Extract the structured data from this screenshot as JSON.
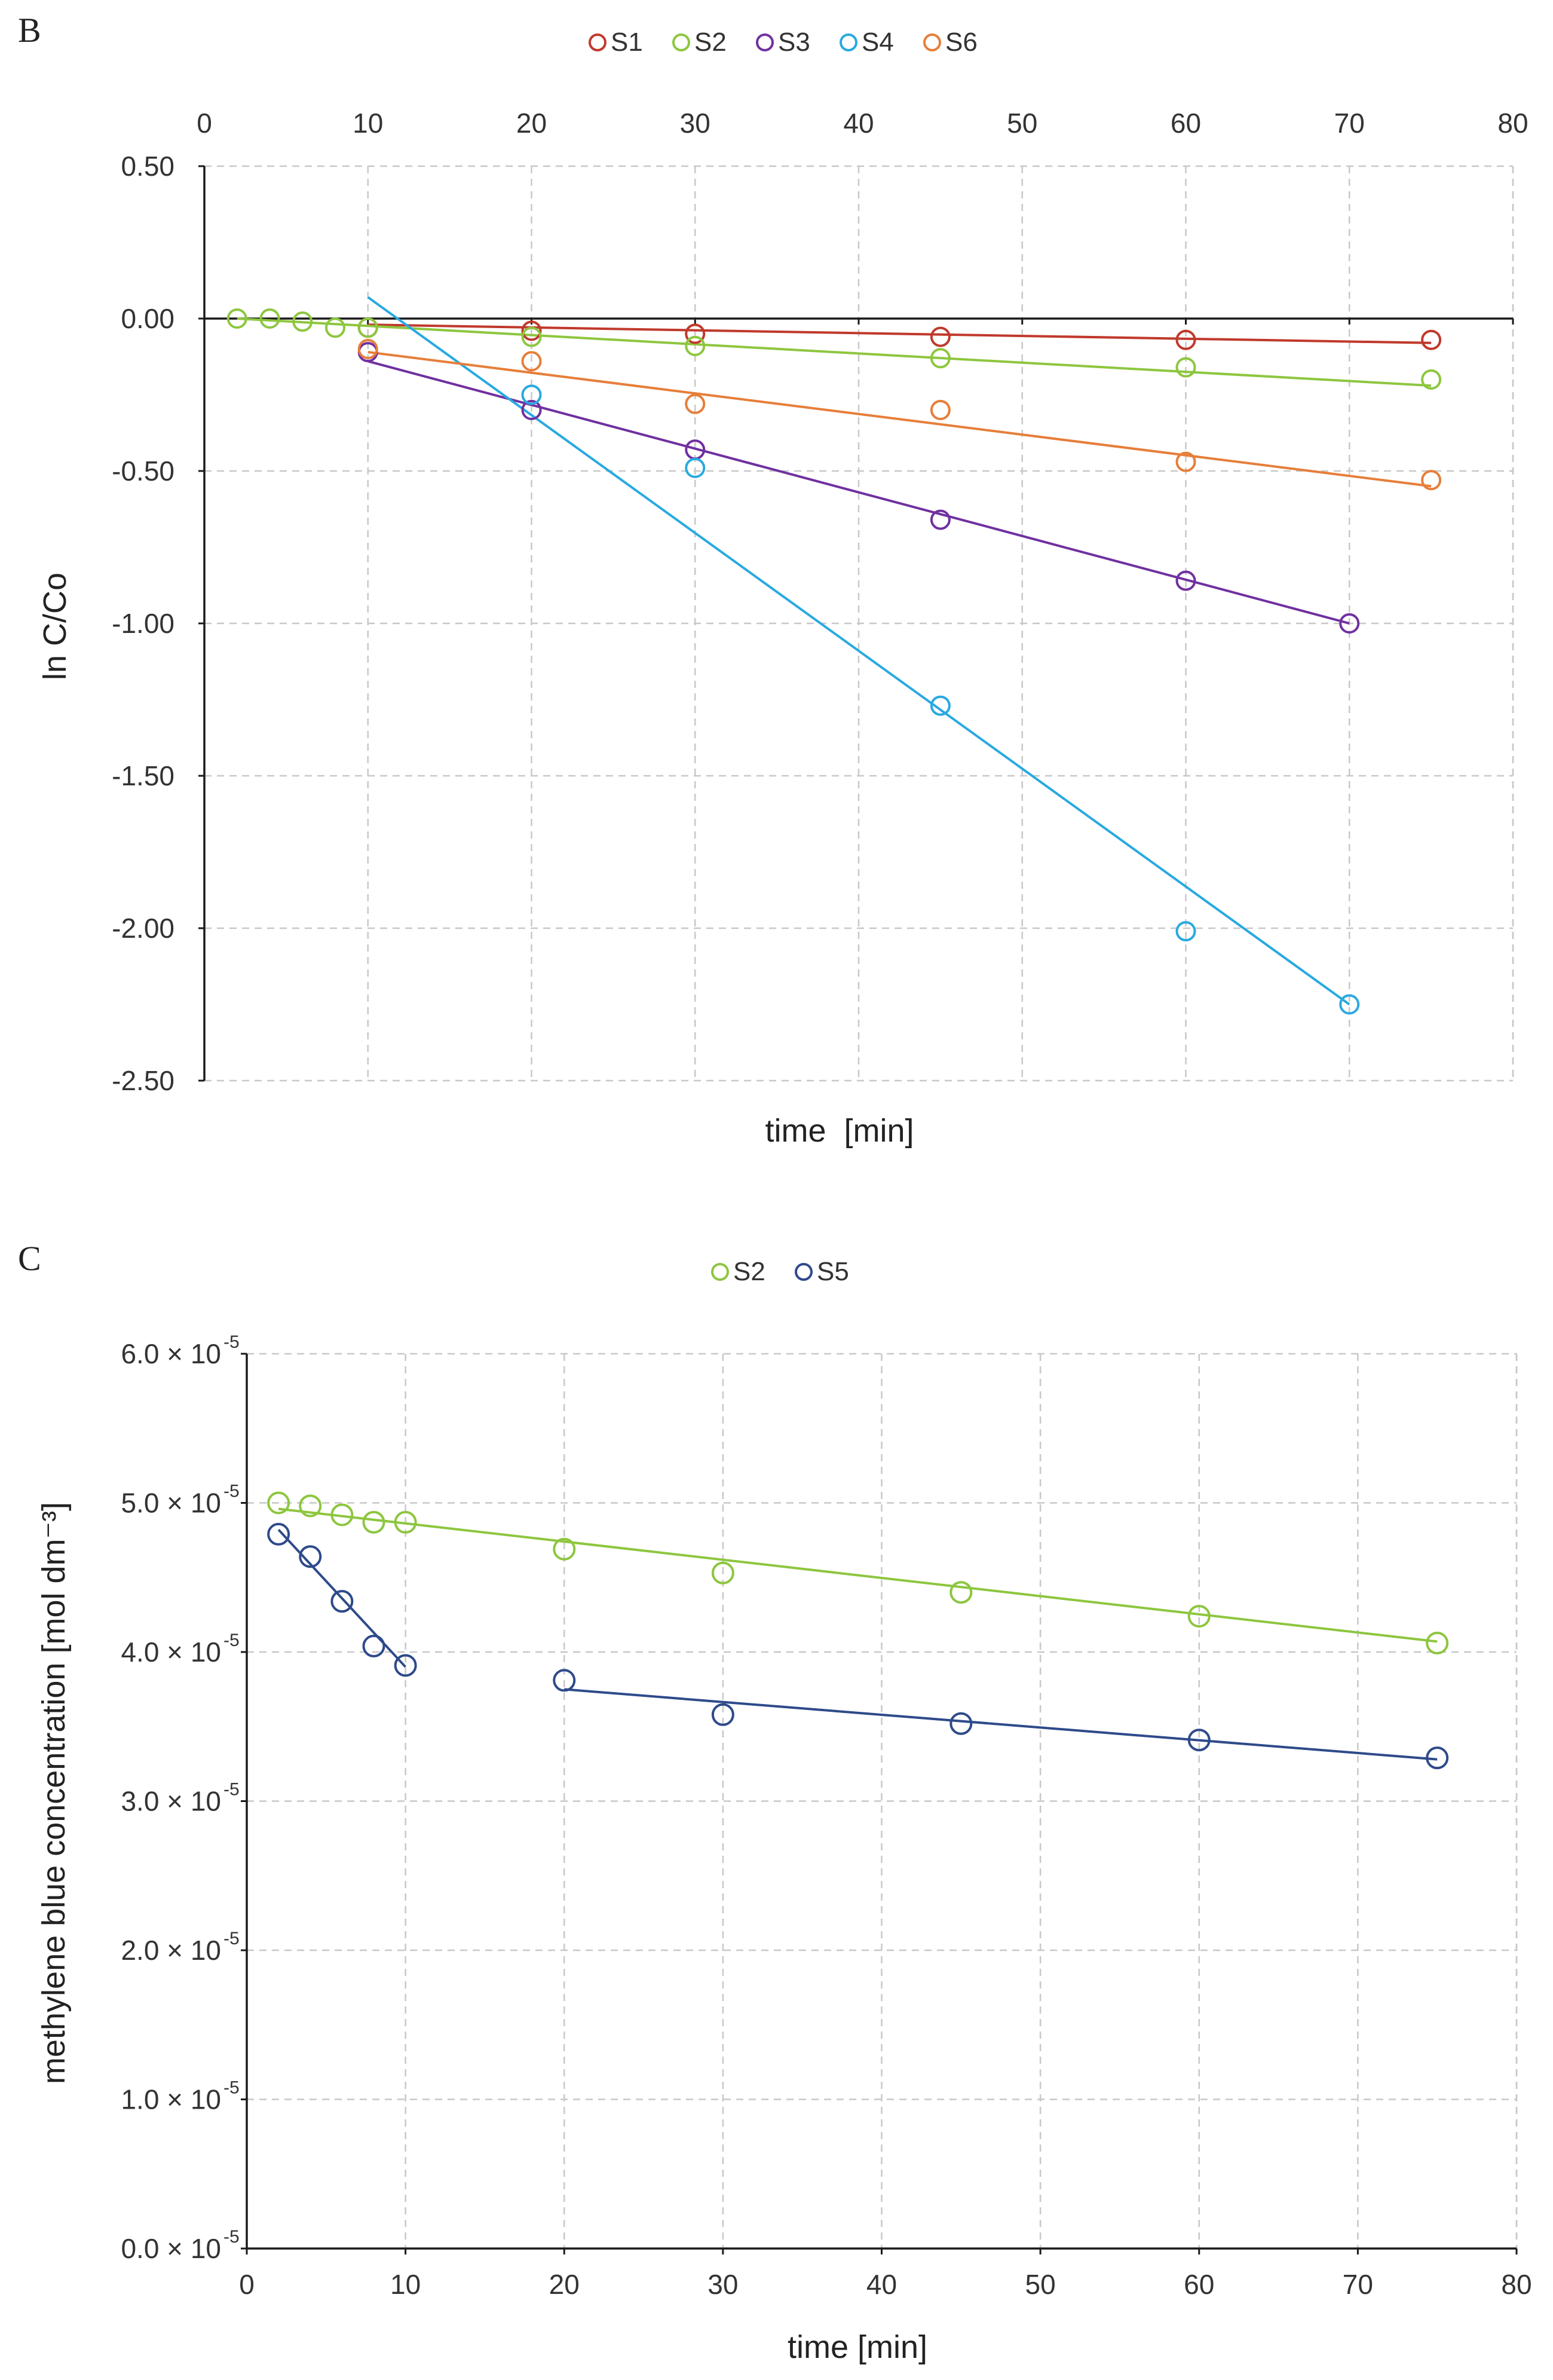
{
  "chart_data": [
    {
      "panel": "B",
      "type": "scatter",
      "title": "",
      "xlabel": "time  [min]",
      "ylabel": "ln C/Co",
      "xlim": [
        0,
        80
      ],
      "ylim": [
        -2.5,
        0.5
      ],
      "x_ticks": [
        0,
        10,
        20,
        30,
        40,
        50,
        60,
        70,
        80
      ],
      "x_tick_labels": [
        "0",
        "10",
        "20",
        "30",
        "40",
        "50",
        "60",
        "70",
        "80"
      ],
      "y_ticks": [
        0.5,
        0.0,
        -0.5,
        -1.0,
        -1.5,
        -2.0,
        -2.5
      ],
      "y_tick_labels": [
        "0.50",
        "0.00",
        "-0.50",
        "-1.00",
        "-1.50",
        "-2.00",
        "-2.50"
      ],
      "x_axis_position": "top",
      "grid": true,
      "legend_position": "top-center",
      "series": [
        {
          "name": "S1",
          "color": "#c0392b",
          "marker": "open-circle",
          "x": [
            10,
            20,
            30,
            45,
            60,
            75
          ],
          "y": [
            -0.03,
            -0.04,
            -0.05,
            -0.06,
            -0.07,
            -0.07
          ],
          "fit": {
            "x": [
              10,
              75
            ],
            "y": [
              -0.02,
              -0.08
            ]
          }
        },
        {
          "name": "S2",
          "color": "#8dc63f",
          "marker": "open-circle",
          "x": [
            2,
            4,
            6,
            8,
            10,
            20,
            30,
            45,
            60,
            75
          ],
          "y": [
            0.0,
            0.0,
            -0.01,
            -0.03,
            -0.03,
            -0.06,
            -0.09,
            -0.13,
            -0.16,
            -0.2
          ],
          "fit": {
            "x": [
              2,
              75
            ],
            "y": [
              0.0,
              -0.22
            ]
          }
        },
        {
          "name": "S3",
          "color": "#7030a0",
          "marker": "open-circle",
          "x": [
            10,
            20,
            30,
            45,
            60,
            70
          ],
          "y": [
            -0.11,
            -0.3,
            -0.43,
            -0.66,
            -0.86,
            -1.0
          ],
          "fit": {
            "x": [
              10,
              70
            ],
            "y": [
              -0.14,
              -1.0
            ]
          }
        },
        {
          "name": "S4",
          "color": "#29a9e1",
          "marker": "open-circle",
          "x": [
            20,
            30,
            45,
            60,
            70
          ],
          "y": [
            -0.25,
            -0.49,
            -1.27,
            -2.01,
            -2.25
          ],
          "fit": {
            "x": [
              10,
              70
            ],
            "y": [
              0.07,
              -2.25
            ]
          }
        },
        {
          "name": "S6",
          "color": "#e67e3a",
          "marker": "open-circle",
          "x": [
            10,
            20,
            30,
            45,
            60,
            75
          ],
          "y": [
            -0.1,
            -0.14,
            -0.28,
            -0.3,
            -0.47,
            -0.53
          ],
          "fit": {
            "x": [
              10,
              75
            ],
            "y": [
              -0.11,
              -0.55
            ]
          }
        }
      ]
    },
    {
      "panel": "C",
      "type": "scatter",
      "title": "",
      "xlabel": "time [min]",
      "ylabel": "methylene blue concentration [mol dm⁻³]",
      "xlim": [
        0,
        80
      ],
      "ylim": [
        0,
        6e-05
      ],
      "x_ticks": [
        0,
        10,
        20,
        30,
        40,
        50,
        60,
        70,
        80
      ],
      "x_tick_labels": [
        "0",
        "10",
        "20",
        "30",
        "40",
        "50",
        "60",
        "70",
        "80"
      ],
      "y_ticks": [
        6e-05,
        5e-05,
        4e-05,
        3e-05,
        2e-05,
        1e-05,
        0.0
      ],
      "y_tick_labels": [
        "6.0 × 10",
        "5.0 × 10",
        "4.0 × 10",
        "3.0 × 10",
        "2.0 × 10",
        "1.0 × 10",
        "0.0 × 10"
      ],
      "y_tick_exponent": "-5",
      "x_axis_position": "bottom",
      "grid": true,
      "legend_position": "top-center",
      "series": [
        {
          "name": "S2",
          "color": "#8dc63f",
          "marker": "open-circle",
          "x": [
            2,
            4,
            6,
            8,
            10,
            20,
            30,
            45,
            60,
            75
          ],
          "y": [
            5e-05,
            4.98e-05,
            4.92e-05,
            4.87e-05,
            4.87e-05,
            4.69e-05,
            4.53e-05,
            4.4e-05,
            4.24e-05,
            4.06e-05
          ],
          "fit": {
            "x": [
              2,
              75
            ],
            "y": [
              4.96e-05,
              4.07e-05
            ]
          }
        },
        {
          "name": "S5",
          "color": "#2e4a8a",
          "marker": "open-circle",
          "x": [
            2,
            4,
            6,
            8,
            10,
            20,
            30,
            45,
            60,
            75
          ],
          "y": [
            4.79e-05,
            4.64e-05,
            4.34e-05,
            4.04e-05,
            3.91e-05,
            3.81e-05,
            3.58e-05,
            3.52e-05,
            3.41e-05,
            3.29e-05
          ],
          "fit": [
            {
              "x": [
                2,
                10
              ],
              "y": [
                4.82e-05,
                3.9e-05
              ]
            },
            {
              "x": [
                20,
                75
              ],
              "y": [
                3.75e-05,
                3.28e-05
              ]
            }
          ]
        }
      ]
    }
  ]
}
